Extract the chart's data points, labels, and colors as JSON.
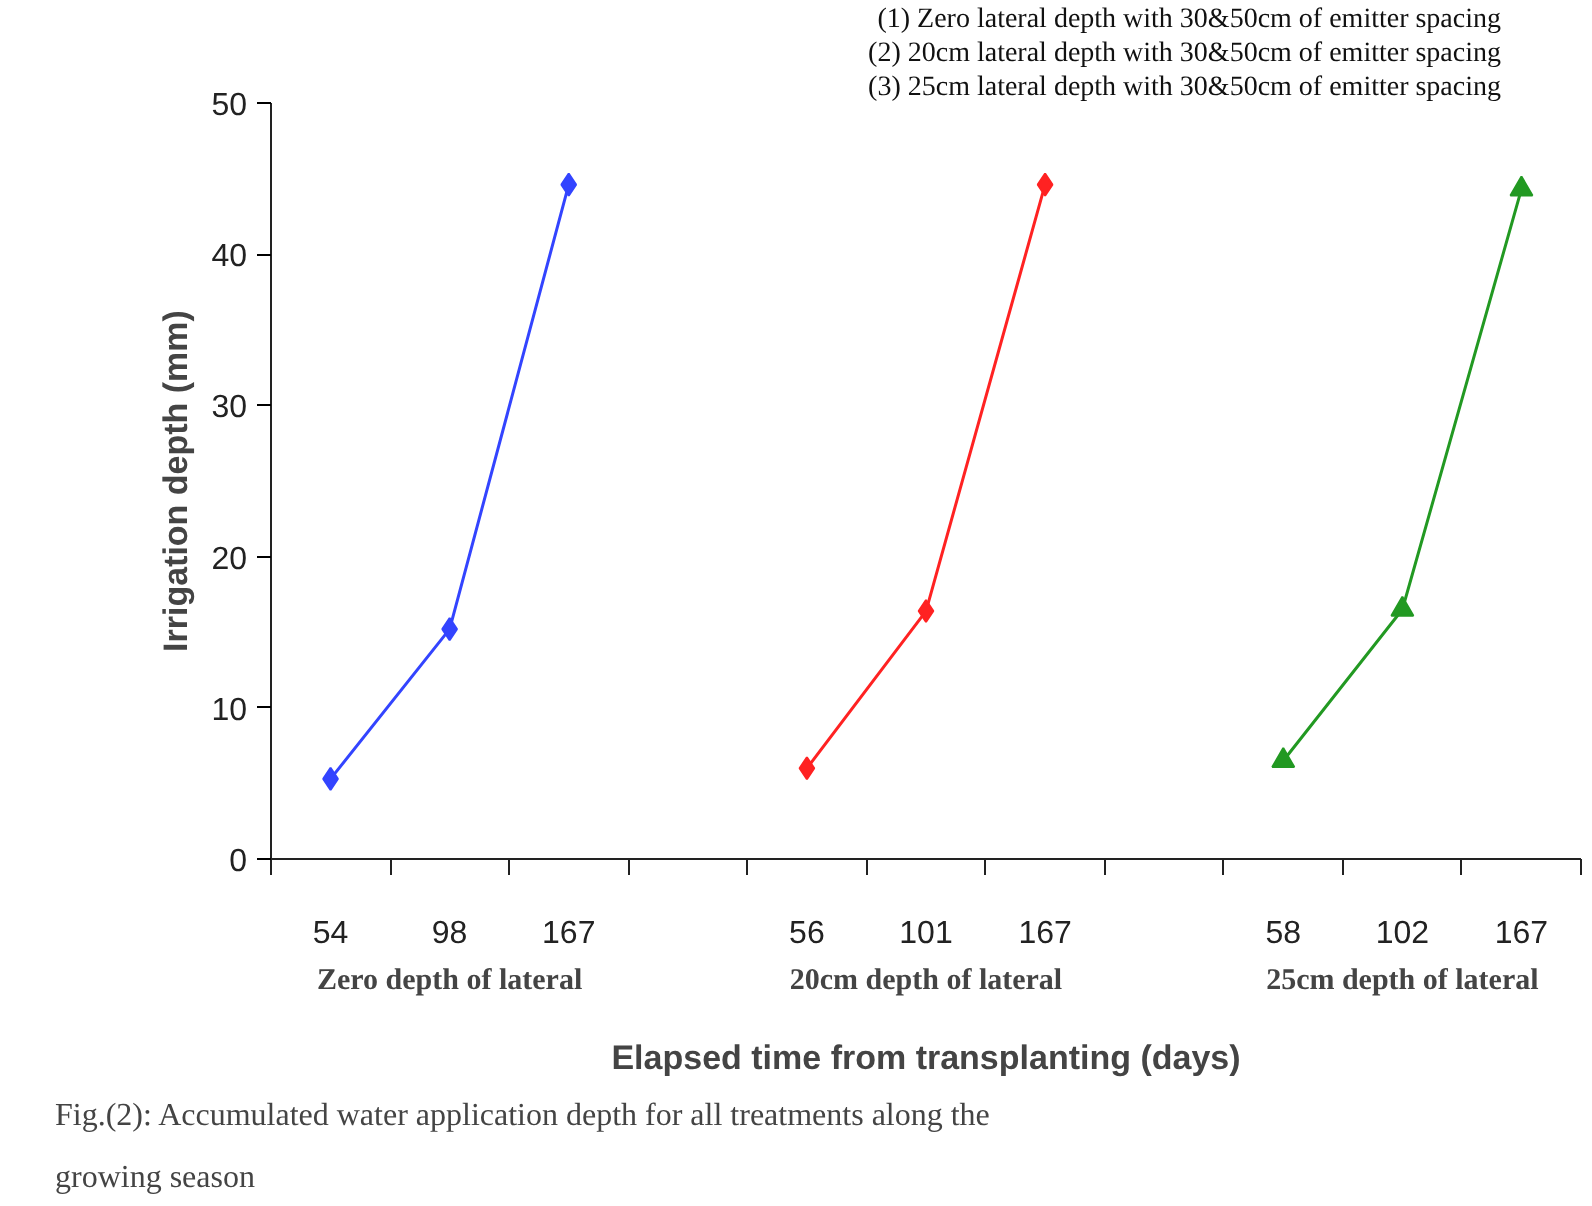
{
  "chart_data": {
    "type": "line",
    "xlabel": "Elapsed time from transplanting (days)",
    "ylabel": "Irrigation depth (mm)",
    "categories": [
      "54",
      "98",
      "167",
      null,
      "56",
      "101",
      "167",
      null,
      "58",
      "102",
      "167"
    ],
    "series": [
      {
        "color": "#3344ff",
        "marker": "diamond",
        "values": [
          5.3,
          15.2,
          44.6,
          null,
          null,
          null,
          null,
          null,
          null,
          null,
          null
        ]
      },
      {
        "color": "#ff2222",
        "marker": "diamond",
        "values": [
          null,
          null,
          null,
          null,
          6.0,
          16.4,
          44.6,
          null,
          null,
          null,
          null
        ]
      },
      {
        "color": "#229922",
        "marker": "triangle",
        "values": [
          null,
          null,
          null,
          null,
          null,
          null,
          null,
          null,
          6.5,
          16.5,
          44.3
        ]
      }
    ],
    "ylim": [
      0,
      50
    ],
    "yticks": [
      0,
      10,
      20,
      30,
      40,
      50
    ],
    "grid": false,
    "line_style": "solid",
    "annotations": [
      "(1) Zero lateral depth with 30&50cm of emitter spacing",
      "(2) 20cm lateral depth with 30&50cm of emitter spacing",
      "(3) 25cm lateral depth with 30&50cm of emitter spacing",
      "Zero depth of lateral",
      "20cm depth of lateral",
      "25cm depth of lateral",
      "Fig.(2):  Accumulated water application depth for all treatments along the growing season"
    ]
  }
}
